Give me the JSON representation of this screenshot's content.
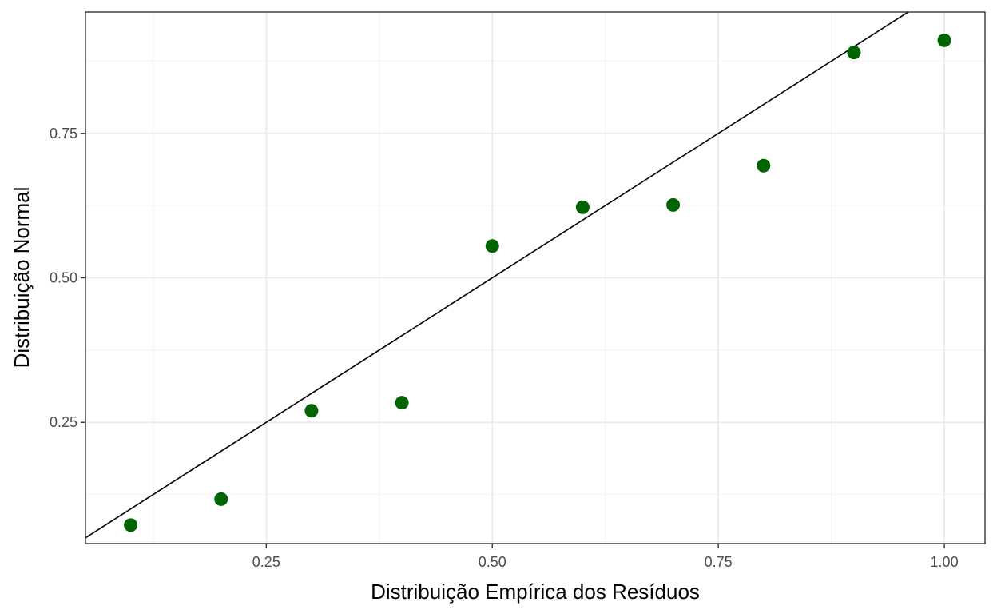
{
  "chart_data": {
    "type": "scatter",
    "title": "",
    "xlabel": "Distribuição Empírica dos Resíduos",
    "ylabel": "Distribuição Normal",
    "xlim": [
      0.05,
      1.045
    ],
    "ylim": [
      0.04,
      0.96
    ],
    "x_ticks": [
      0.25,
      0.5,
      0.75,
      1.0
    ],
    "x_tick_labels": [
      "0.25",
      "0.50",
      "0.75",
      "1.00"
    ],
    "y_ticks": [
      0.25,
      0.5,
      0.75
    ],
    "y_tick_labels": [
      "0.25",
      "0.50",
      "0.75"
    ],
    "grid": true,
    "reference_line": {
      "slope": 1,
      "intercept": 0
    },
    "points": [
      {
        "x": 0.1,
        "y": 0.072
      },
      {
        "x": 0.2,
        "y": 0.117
      },
      {
        "x": 0.3,
        "y": 0.27
      },
      {
        "x": 0.4,
        "y": 0.284
      },
      {
        "x": 0.5,
        "y": 0.555
      },
      {
        "x": 0.6,
        "y": 0.622
      },
      {
        "x": 0.7,
        "y": 0.626
      },
      {
        "x": 0.8,
        "y": 0.694
      },
      {
        "x": 0.9,
        "y": 0.89
      },
      {
        "x": 1.0,
        "y": 0.911
      }
    ],
    "colors": {
      "point": "#006400",
      "line": "#000000",
      "grid_major": "#ebebeb",
      "grid_minor": "#f5f5f5",
      "panel_border": "#333333"
    }
  }
}
